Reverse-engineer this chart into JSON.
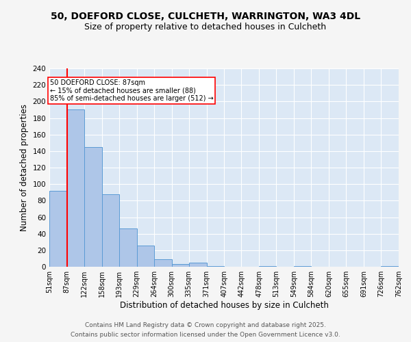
{
  "title1": "50, DOEFORD CLOSE, CULCHETH, WARRINGTON, WA3 4DL",
  "title2": "Size of property relative to detached houses in Culcheth",
  "xlabel": "Distribution of detached houses by size in Culcheth",
  "ylabel": "Number of detached properties",
  "bin_edges": [
    51,
    87,
    122,
    158,
    193,
    229,
    264,
    300,
    335,
    371,
    407,
    442,
    478,
    513,
    549,
    584,
    620,
    655,
    691,
    726,
    762
  ],
  "bar_heights": [
    92,
    190,
    145,
    88,
    46,
    26,
    9,
    3,
    5,
    1,
    0,
    0,
    1,
    0,
    1,
    0,
    0,
    0,
    0,
    1
  ],
  "bar_color": "#aec6e8",
  "bar_edge_color": "#5b9bd5",
  "red_line_x": 87,
  "annotation_text": "50 DOEFORD CLOSE: 87sqm\n← 15% of detached houses are smaller (88)\n85% of semi-detached houses are larger (512) →",
  "ylim": [
    0,
    240
  ],
  "yticks": [
    0,
    20,
    40,
    60,
    80,
    100,
    120,
    140,
    160,
    180,
    200,
    220,
    240
  ],
  "background_color": "#dce8f5",
  "grid_color": "#ffffff",
  "fig_background": "#f5f5f5",
  "footnote1": "Contains HM Land Registry data © Crown copyright and database right 2025.",
  "footnote2": "Contains public sector information licensed under the Open Government Licence v3.0.",
  "title1_fontsize": 10,
  "title2_fontsize": 9,
  "axis_fontsize": 8.5,
  "tick_fontsize": 7.5,
  "footnote_fontsize": 6.5
}
